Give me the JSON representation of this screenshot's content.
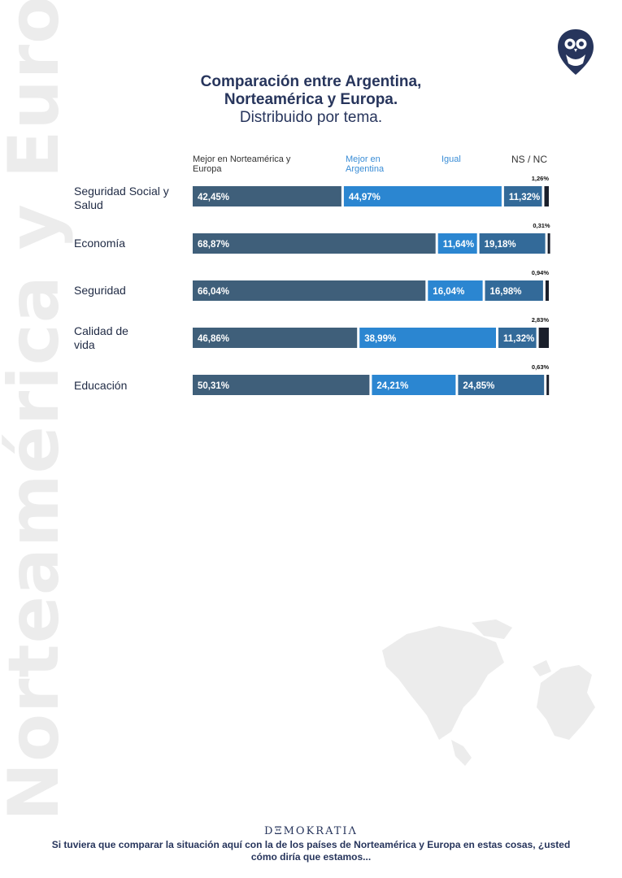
{
  "side_text": "Norteamérica y Europa",
  "title": {
    "line1": "Comparación entre Argentina,",
    "line2": "Norteamérica y Europa.",
    "subtitle": "Distribuido por tema."
  },
  "legend": {
    "mejor_norteamerica": "Mejor en Norteamérica y Europa",
    "mejor_argentina": "Mejor en Argentina",
    "igual": "Igual",
    "ns_nc": "NS / NC"
  },
  "rows": [
    {
      "label": "Seguridad Social y Salud"
    },
    {
      "label": "Economía"
    },
    {
      "label": "Seguridad"
    },
    {
      "label": "Calidad de vida"
    },
    {
      "label": "Educación"
    }
  ],
  "chart_data": {
    "type": "bar",
    "orientation": "horizontal",
    "stacked": true,
    "title": "Comparación entre Argentina, Norteamérica y Europa.",
    "subtitle": "Distribuido por tema.",
    "categories": [
      "Seguridad Social y Salud",
      "Economía",
      "Seguridad",
      "Calidad de vida",
      "Educación"
    ],
    "series": [
      {
        "name": "Mejor en Norteamérica y Europa",
        "color": "#3f5f7a",
        "values": [
          42.45,
          68.87,
          66.04,
          46.86,
          50.31
        ],
        "labels": [
          "42,45%",
          "68,87%",
          "66,04%",
          "46,86%",
          "50,31%"
        ]
      },
      {
        "name": "Mejor en Argentina",
        "color": "#2b86d1",
        "values": [
          44.97,
          11.64,
          16.04,
          38.99,
          24.21
        ],
        "labels": [
          "44,97%",
          "11,64%",
          "16,04%",
          "38,99%",
          "24,21%"
        ]
      },
      {
        "name": "Igual",
        "color": "#336a99",
        "values": [
          11.32,
          19.18,
          16.98,
          11.32,
          24.85
        ],
        "labels": [
          "11,32%",
          "19,18%",
          "16,98%",
          "11,32%",
          "24,85%"
        ]
      },
      {
        "name": "NS / NC",
        "color": "#1a1f2b",
        "values": [
          1.26,
          0.31,
          0.94,
          2.83,
          0.63
        ],
        "labels": [
          "1,26%",
          "0,31%",
          "0,94%",
          "2,83%",
          "0,63%"
        ]
      }
    ],
    "xlim": [
      0,
      100
    ],
    "legend_position": "top"
  },
  "footer": {
    "brand": "DΞMOKRATIΛ",
    "question": "Si tuviera que comparar la situación aquí con la de los países de Norteamérica y Europa en estas cosas, ¿usted cómo diría que estamos..."
  }
}
